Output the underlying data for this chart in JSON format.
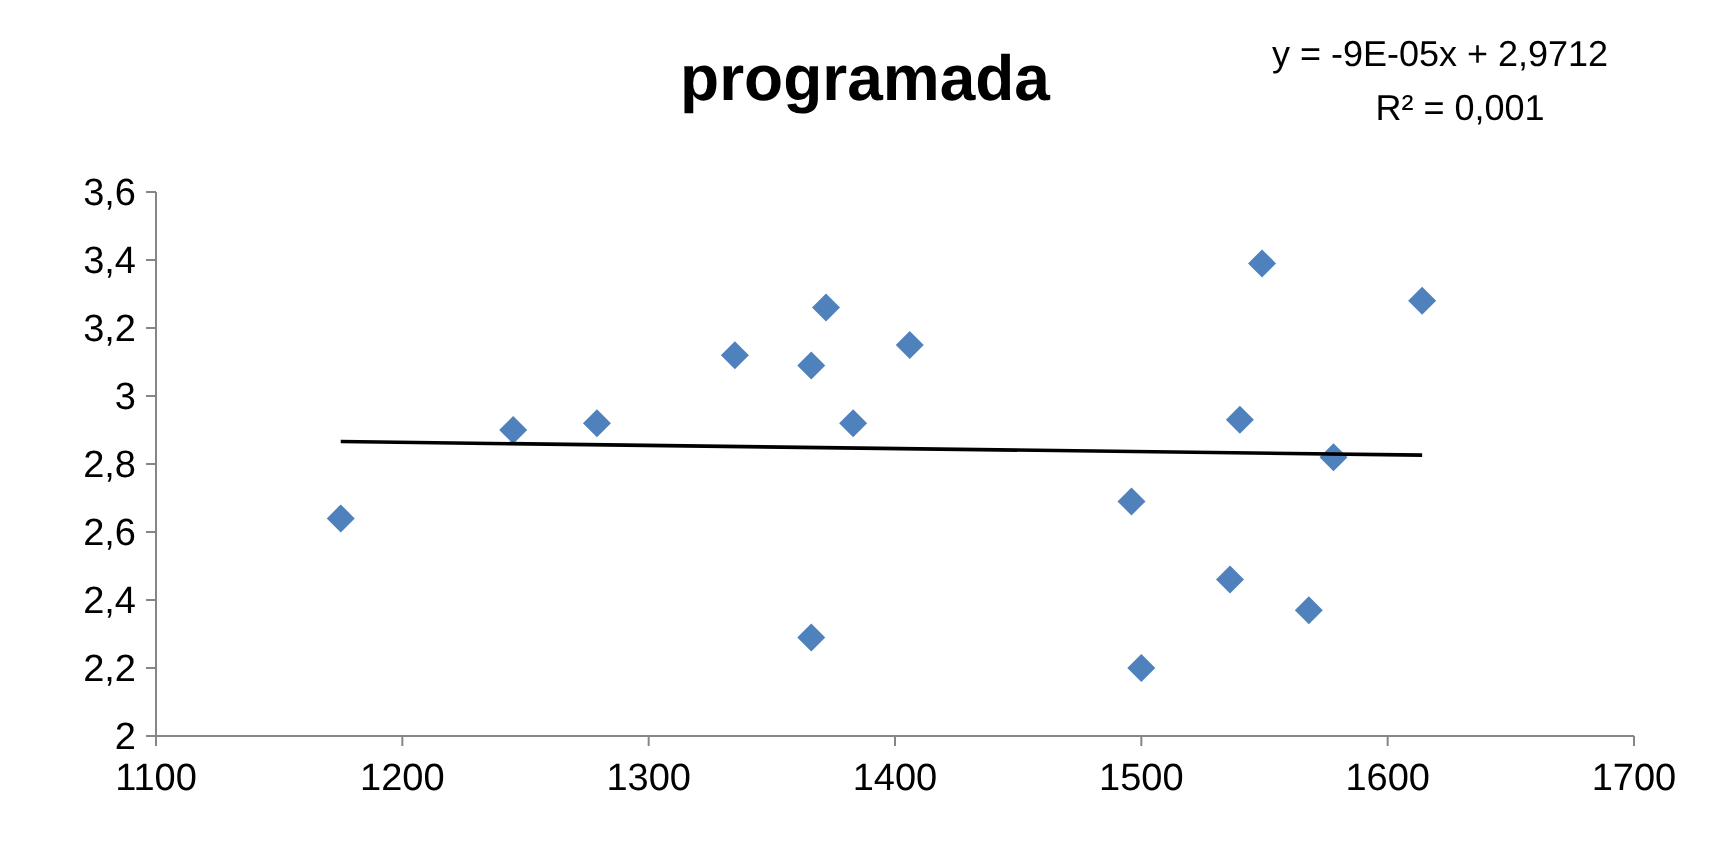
{
  "chart_data": {
    "type": "scatter",
    "title": "programada",
    "xlim": [
      1100,
      1700
    ],
    "xticks": [
      1100,
      1200,
      1300,
      1400,
      1500,
      1600,
      1700
    ],
    "ylim": [
      2,
      3.6
    ],
    "yticks": [
      {
        "value": 2,
        "label": "2"
      },
      {
        "value": 2.2,
        "label": "2,2"
      },
      {
        "value": 2.4,
        "label": "2,4"
      },
      {
        "value": 2.6,
        "label": "2,6"
      },
      {
        "value": 2.8,
        "label": "2,8"
      },
      {
        "value": 3,
        "label": "3"
      },
      {
        "value": 3.2,
        "label": "3,2"
      },
      {
        "value": 3.4,
        "label": "3,4"
      },
      {
        "value": 3.6,
        "label": "3,6"
      }
    ],
    "grid": false,
    "marker": "diamond",
    "annotations": [
      "y = -9E-05x + 2,9712",
      "R² = 0,001"
    ],
    "series": [
      {
        "color": "#4f81bd",
        "x": [
          1175,
          1245,
          1279,
          1335,
          1366,
          1366,
          1372,
          1383,
          1406,
          1496,
          1500,
          1536,
          1540,
          1549,
          1568,
          1578,
          1614
        ],
        "values": [
          2.64,
          2.9,
          2.92,
          3.12,
          3.09,
          2.29,
          3.26,
          2.92,
          3.15,
          2.69,
          2.2,
          2.46,
          2.93,
          3.39,
          2.37,
          2.82,
          3.28
        ]
      },
      {
        "type": "line",
        "color": "#000000",
        "x": [
          1175,
          1614
        ],
        "values": [
          2.866,
          2.826
        ],
        "marker": "none",
        "line_style": "solid"
      }
    ]
  }
}
